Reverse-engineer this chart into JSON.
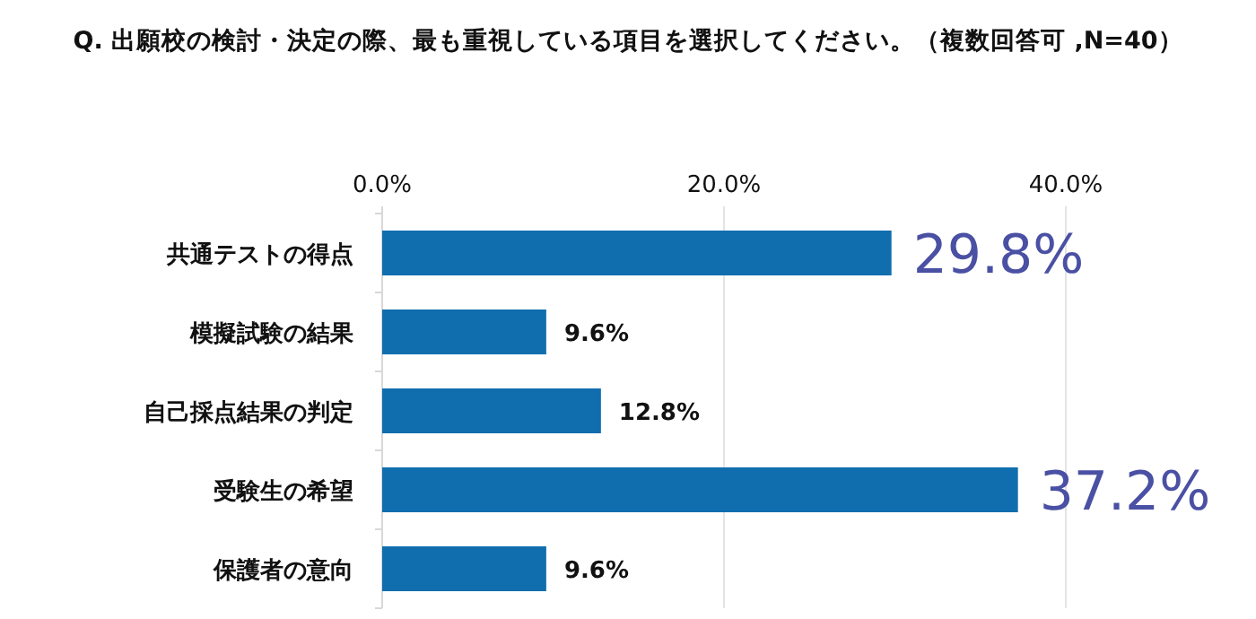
{
  "chart_data": {
    "type": "bar",
    "orientation": "horizontal",
    "title": "Q. 出願校の検討・決定の際、最も重視している項目を選択してください。（複数回答可 ,N=40）",
    "categories": [
      "共通テストの得点",
      "模擬試験の結果",
      "自己採点結果の判定",
      "受験生の希望",
      "保護者の意向"
    ],
    "values": [
      29.8,
      9.6,
      12.8,
      37.2,
      9.6
    ],
    "value_labels": [
      "29.8%",
      "9.6%",
      "12.8%",
      "37.2%",
      "9.6%"
    ],
    "color": "#106eae",
    "xlim": [
      0,
      40
    ],
    "xticks": [
      {
        "value": 0,
        "label": "0.0%"
      },
      {
        "value": 20,
        "label": "20.0%"
      },
      {
        "value": 40,
        "label": "40.0%"
      }
    ],
    "grid": "x"
  }
}
